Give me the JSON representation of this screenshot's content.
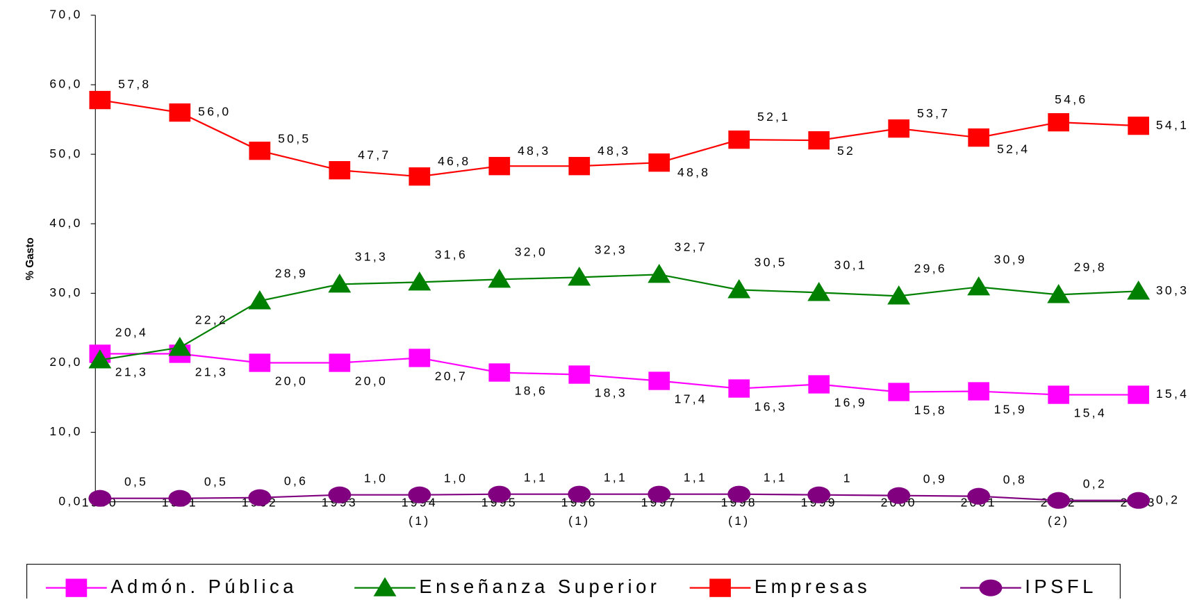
{
  "chart_data": {
    "type": "line",
    "y_label": "% Gasto",
    "categories": [
      "1990",
      "1991",
      "1992",
      "1993",
      "1994",
      "1995",
      "1996",
      "1997",
      "1998",
      "1999",
      "2000",
      "2001",
      "2002",
      "2003"
    ],
    "category_notes": [
      null,
      null,
      null,
      null,
      "(1)",
      null,
      "(1)",
      null,
      "(1)",
      null,
      null,
      null,
      "(2)",
      null
    ],
    "ylim": [
      0,
      70
    ],
    "yticks": [
      {
        "value": 0,
        "label": "0,0"
      },
      {
        "value": 10,
        "label": "10,0"
      },
      {
        "value": 20,
        "label": "20,0"
      },
      {
        "value": 30,
        "label": "30,0"
      },
      {
        "value": 40,
        "label": "40,0"
      },
      {
        "value": 50,
        "label": "50,0"
      },
      {
        "value": 60,
        "label": "60,0"
      },
      {
        "value": 70,
        "label": "70,0"
      }
    ],
    "legend": "bottom",
    "series": [
      {
        "name": "Admón. Pública",
        "color": "#ff00ff",
        "marker": "square",
        "values": [
          21.3,
          21.3,
          20.0,
          20.0,
          20.7,
          18.6,
          18.3,
          17.4,
          16.3,
          16.9,
          15.8,
          15.9,
          15.4,
          15.4
        ],
        "value_labels": [
          "21,3",
          "21,3",
          "20,0",
          "20,0",
          "20,7",
          "18,6",
          "18,3",
          "17,4",
          "16,3",
          "16,9",
          "15,8",
          "15,9",
          "15,4",
          "15,4"
        ]
      },
      {
        "name": "Enseñanza Superior",
        "color": "#008000",
        "marker": "triangle",
        "values": [
          20.4,
          22.2,
          28.9,
          31.3,
          31.6,
          32.0,
          32.3,
          32.7,
          30.5,
          30.1,
          29.6,
          30.9,
          29.8,
          30.3
        ],
        "value_labels": [
          "20,4",
          "22,2",
          "28,9",
          "31,3",
          "31,6",
          "32,0",
          "32,3",
          "32,7",
          "30,5",
          "30,1",
          "29,6",
          "30,9",
          "29,8",
          "30,3"
        ]
      },
      {
        "name": "Empresas",
        "color": "#ff0000",
        "marker": "square",
        "values": [
          57.8,
          56.0,
          50.5,
          47.7,
          46.8,
          48.3,
          48.3,
          48.8,
          52.1,
          52,
          53.7,
          52.4,
          54.6,
          54.1
        ],
        "value_labels": [
          "57,8",
          "56,0",
          "50,5",
          "47,7",
          "46,8",
          "48,3",
          "48,3",
          "48,8",
          "52,1",
          "52",
          "53,7",
          "52,4",
          "54,6",
          "54,1"
        ]
      },
      {
        "name": "IPSFL",
        "color": "#800080",
        "marker": "circle",
        "values": [
          0.5,
          0.5,
          0.6,
          1.0,
          1.0,
          1.1,
          1.1,
          1.1,
          1.1,
          1,
          0.9,
          0.8,
          0.2,
          0.2
        ],
        "value_labels": [
          "0,5",
          "0,5",
          "0,6",
          "1,0",
          "1,0",
          "1,1",
          "1,1",
          "1,1",
          "1,1",
          "1",
          "0,9",
          "0,8",
          "0,2",
          "0,2"
        ]
      }
    ]
  }
}
